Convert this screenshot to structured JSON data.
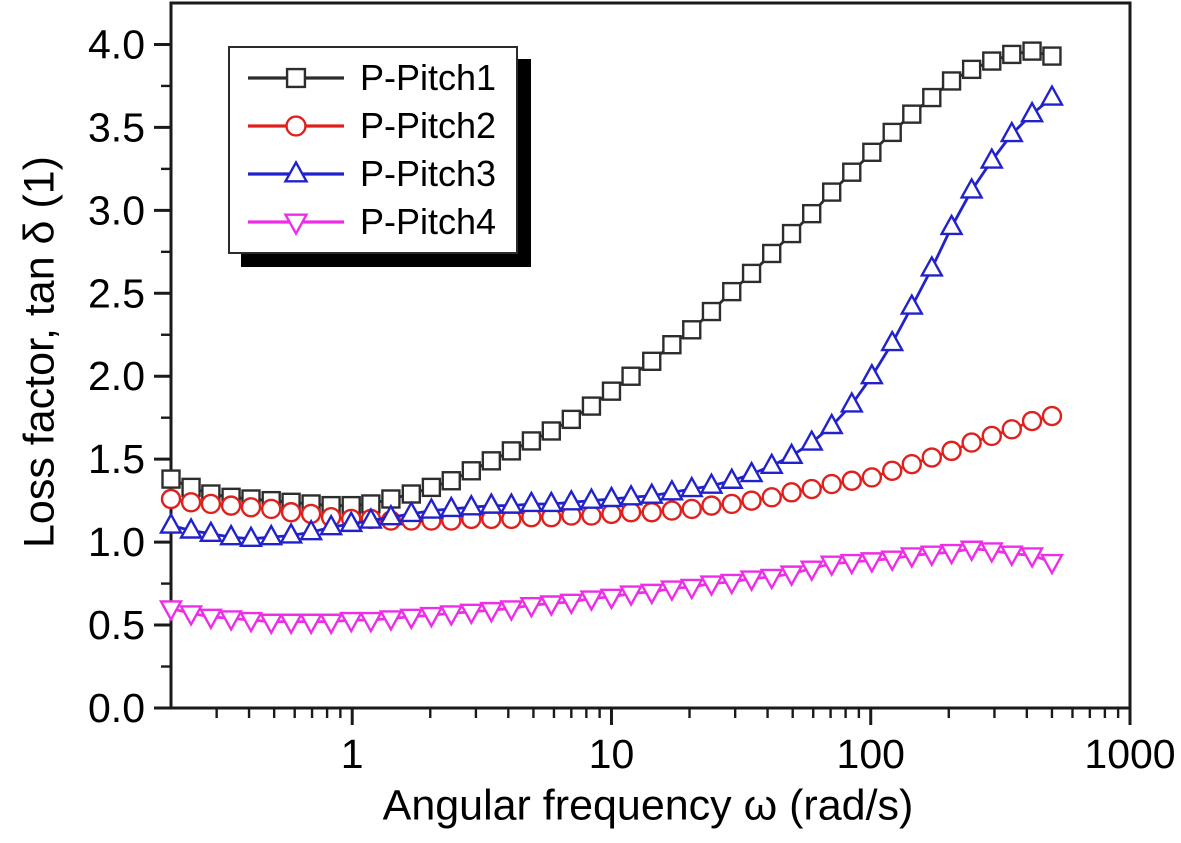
{
  "figure": {
    "background": "#ffffff",
    "frame_color": "#1a1a1a"
  },
  "axes": {
    "x": {
      "title": "Angular frequency ω (rad/s)",
      "scale": "log",
      "tick_values": [
        1,
        10,
        100,
        1000
      ],
      "tick_labels": [
        "1",
        "10",
        "100",
        "1000"
      ]
    },
    "y": {
      "title": "Loss factor, tan δ (1)",
      "scale": "linear",
      "tick_values": [
        0,
        0.5,
        1.0,
        1.5,
        2.0,
        2.5,
        3.0,
        3.5,
        4.0
      ],
      "tick_labels": [
        "0.0",
        "0.5",
        "1.0",
        "1.5",
        "2.0",
        "2.5",
        "3.0",
        "3.5",
        "4.0"
      ]
    }
  },
  "chart_data": {
    "type": "line",
    "title": "",
    "xlabel": "Angular frequency ω (rad/s)",
    "ylabel": "Loss factor, tan δ (1)",
    "xscale": "log",
    "xlim": [
      0.2,
      1000
    ],
    "ylim": [
      0,
      4.25
    ],
    "grid": false,
    "legend_position": "top-left",
    "x": [
      0.2,
      0.239,
      0.285,
      0.341,
      0.407,
      0.487,
      0.581,
      0.694,
      0.829,
      0.991,
      1.18,
      1.41,
      1.69,
      2.02,
      2.41,
      2.88,
      3.44,
      4.11,
      4.91,
      5.86,
      7.0,
      8.37,
      10,
      11.9,
      14.3,
      17.1,
      20.4,
      24.3,
      29.1,
      34.7,
      41.5,
      49.5,
      59.2,
      70.7,
      84.5,
      101,
      121,
      144,
      172,
      205,
      245,
      293,
      350,
      419,
      500
    ],
    "series": [
      {
        "name": "P-Pitch1",
        "color": "#2d2d2d",
        "marker": "square",
        "values": [
          1.38,
          1.33,
          1.29,
          1.27,
          1.26,
          1.25,
          1.24,
          1.23,
          1.22,
          1.22,
          1.23,
          1.26,
          1.29,
          1.33,
          1.37,
          1.43,
          1.49,
          1.55,
          1.61,
          1.67,
          1.74,
          1.82,
          1.91,
          2.0,
          2.09,
          2.19,
          2.28,
          2.39,
          2.51,
          2.62,
          2.74,
          2.86,
          2.98,
          3.11,
          3.23,
          3.35,
          3.47,
          3.58,
          3.68,
          3.78,
          3.85,
          3.9,
          3.94,
          3.96,
          3.93
        ]
      },
      {
        "name": "P-Pitch2",
        "color": "#e0201d",
        "marker": "circle",
        "values": [
          1.26,
          1.24,
          1.23,
          1.22,
          1.21,
          1.2,
          1.18,
          1.17,
          1.15,
          1.14,
          1.14,
          1.13,
          1.13,
          1.13,
          1.13,
          1.14,
          1.14,
          1.14,
          1.15,
          1.15,
          1.16,
          1.16,
          1.17,
          1.18,
          1.18,
          1.19,
          1.2,
          1.22,
          1.23,
          1.25,
          1.27,
          1.3,
          1.32,
          1.35,
          1.37,
          1.39,
          1.43,
          1.47,
          1.51,
          1.55,
          1.6,
          1.64,
          1.68,
          1.73,
          1.76
        ]
      },
      {
        "name": "P-Pitch3",
        "color": "#2222cc",
        "marker": "triangle-up",
        "values": [
          1.1,
          1.07,
          1.05,
          1.03,
          1.02,
          1.03,
          1.04,
          1.06,
          1.09,
          1.11,
          1.13,
          1.15,
          1.17,
          1.19,
          1.2,
          1.21,
          1.22,
          1.22,
          1.23,
          1.23,
          1.24,
          1.25,
          1.26,
          1.27,
          1.28,
          1.3,
          1.32,
          1.34,
          1.37,
          1.41,
          1.46,
          1.52,
          1.6,
          1.7,
          1.83,
          2.0,
          2.2,
          2.42,
          2.65,
          2.9,
          3.12,
          3.3,
          3.46,
          3.58,
          3.68
        ]
      },
      {
        "name": "P-Pitch4",
        "color": "#ee2de8",
        "marker": "triangle-down",
        "values": [
          0.6,
          0.57,
          0.55,
          0.54,
          0.53,
          0.52,
          0.52,
          0.52,
          0.52,
          0.53,
          0.53,
          0.54,
          0.55,
          0.56,
          0.57,
          0.58,
          0.59,
          0.6,
          0.62,
          0.63,
          0.64,
          0.66,
          0.67,
          0.69,
          0.7,
          0.72,
          0.73,
          0.75,
          0.76,
          0.78,
          0.79,
          0.81,
          0.84,
          0.87,
          0.88,
          0.89,
          0.9,
          0.92,
          0.93,
          0.94,
          0.96,
          0.95,
          0.93,
          0.92,
          0.88
        ]
      }
    ]
  }
}
